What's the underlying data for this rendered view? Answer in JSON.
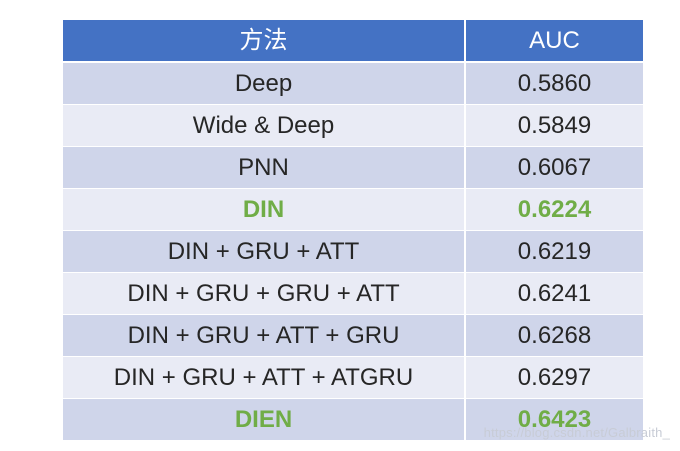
{
  "table": {
    "headers": [
      "方法",
      "AUC"
    ],
    "rows": [
      {
        "method": "Deep",
        "auc": "0.5860",
        "highlight": false
      },
      {
        "method": "Wide & Deep",
        "auc": "0.5849",
        "highlight": false
      },
      {
        "method": "PNN",
        "auc": "0.6067",
        "highlight": false
      },
      {
        "method": "DIN",
        "auc": "0.6224",
        "highlight": true
      },
      {
        "method": "DIN + GRU + ATT",
        "auc": "0.6219",
        "highlight": false
      },
      {
        "method": "DIN + GRU + GRU + ATT",
        "auc": "0.6241",
        "highlight": false
      },
      {
        "method": "DIN + GRU + ATT + GRU",
        "auc": "0.6268",
        "highlight": false
      },
      {
        "method": "DIN + GRU + ATT + ATGRU",
        "auc": "0.6297",
        "highlight": false
      },
      {
        "method": "DIEN",
        "auc": "0.6423",
        "highlight": true
      }
    ]
  },
  "colors": {
    "header_bg": "#4472c4",
    "row_odd": "#cfd5ea",
    "row_even": "#e9ebf5",
    "highlight_text": "#70ad47"
  },
  "watermark": "https://blog.csdn.net/Galbraith_"
}
